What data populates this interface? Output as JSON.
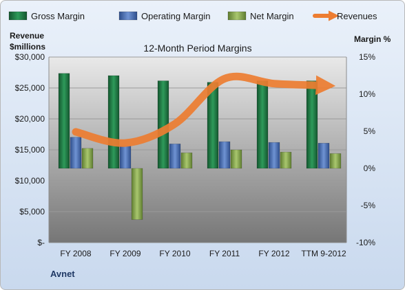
{
  "chart_data": {
    "type": "bar",
    "title": "12-Month Period Margins",
    "company": "Avnet",
    "y_left_label_line1": "Revenue",
    "y_left_label_line2": "$millions",
    "y_right_label": "Margin %",
    "categories": [
      "FY 2008",
      "FY 2009",
      "FY 2010",
      "FY 2011",
      "FY 2012",
      "TTM 9-2012"
    ],
    "left_axis": {
      "min": 0,
      "max": 30000,
      "ticks": [
        0,
        5000,
        10000,
        15000,
        20000,
        25000,
        30000
      ],
      "tick_labels": [
        "$-",
        "$5,000",
        "$10,000",
        "$15,000",
        "$20,000",
        "$25,000",
        "$30,000"
      ]
    },
    "right_axis": {
      "min": -10,
      "max": 15,
      "ticks": [
        -10,
        -5,
        0,
        5,
        10,
        15
      ],
      "tick_labels": [
        "-10%",
        "-5%",
        "0%",
        "5%",
        "10%",
        "15%"
      ]
    },
    "series": [
      {
        "name": "Gross Margin",
        "axis": "right",
        "kind": "bar",
        "color": "#1e7a45",
        "values": [
          12.8,
          12.5,
          11.8,
          11.6,
          11.8,
          11.8
        ]
      },
      {
        "name": "Operating Margin",
        "axis": "right",
        "kind": "bar",
        "color": "#4a72b8",
        "values": [
          4.2,
          3.0,
          3.3,
          3.6,
          3.5,
          3.4
        ]
      },
      {
        "name": "Net Margin",
        "axis": "right",
        "kind": "bar",
        "color": "#84a64c",
        "values": [
          2.7,
          -6.9,
          2.1,
          2.5,
          2.2,
          2.0
        ]
      },
      {
        "name": "Revenues",
        "axis": "left",
        "kind": "line",
        "color": "#ed7d31",
        "values": [
          17900,
          16100,
          19200,
          26500,
          25700,
          25400
        ]
      }
    ],
    "grid": true,
    "legend_position": "top"
  }
}
